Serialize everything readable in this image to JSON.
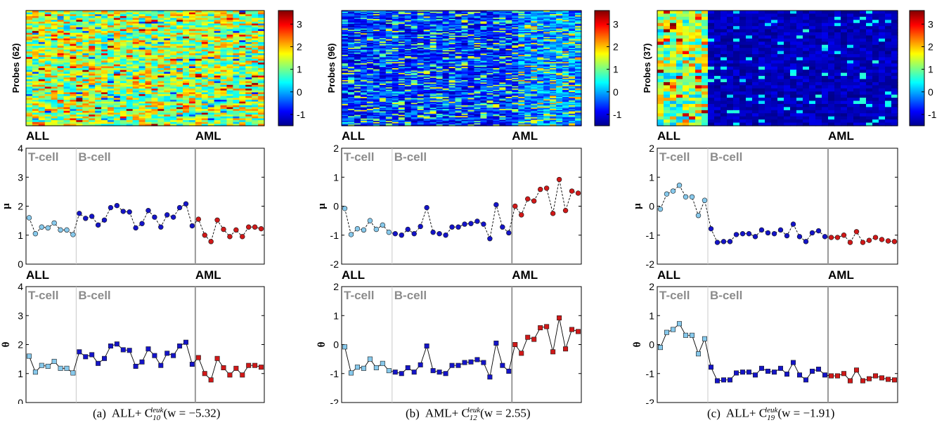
{
  "colorbar_ticks": [
    "3",
    "2",
    "1",
    "0",
    "-1"
  ],
  "group_labels": {
    "all": "ALL",
    "aml": "AML",
    "tcell": "T-cell",
    "bcell": "B-cell"
  },
  "colors": {
    "tcell": "#87c9ec",
    "bcell": "#1414c8",
    "aml": "#d01818",
    "divider": "#999999",
    "label_gray": "#8c8c8c"
  },
  "captions": [
    {
      "label": "(a)",
      "pre": "ALL+ C",
      "sub": "10",
      "sup": "leuk",
      "post": "(w = −5.32)"
    },
    {
      "label": "(b)",
      "pre": "AML+ C",
      "sub": "12",
      "sup": "leuk",
      "post": "(w = 2.55)"
    },
    {
      "label": "(c)",
      "pre": "ALL+ C",
      "sub": "19",
      "sup": "leuk",
      "post": "(w = −1.91)"
    }
  ],
  "chart_data": [
    {
      "type": "heatmap",
      "panel": "a",
      "ylabel": "Probes (62)",
      "rows": 62,
      "n_samples": 38,
      "n_tcell": 8,
      "n_bcell": 19,
      "n_aml": 11,
      "clim": [
        -1.5,
        3.6
      ],
      "colorbar_ticks": [
        3,
        2,
        1,
        0,
        -1
      ]
    },
    {
      "type": "line",
      "panel": "a",
      "ylabel": "μ",
      "ylim": [
        0,
        4
      ],
      "yticks": [
        0,
        1,
        2,
        3,
        4
      ],
      "marker": "circle",
      "linestyle": "dashed",
      "series": [
        {
          "group": "tcell",
          "values": [
            1.6,
            1.05,
            1.28,
            1.25,
            1.42,
            1.18,
            1.18,
            1.02
          ]
        },
        {
          "group": "bcell",
          "values": [
            1.75,
            1.58,
            1.65,
            1.35,
            1.52,
            1.95,
            2.02,
            1.82,
            1.8,
            1.25,
            1.4,
            1.85,
            1.62,
            1.28,
            1.7,
            1.62,
            1.95,
            2.08,
            1.32
          ]
        },
        {
          "group": "aml",
          "values": [
            1.55,
            1.0,
            0.78,
            1.52,
            1.2,
            0.95,
            1.18,
            0.95,
            1.28,
            1.28,
            1.22
          ]
        }
      ]
    },
    {
      "type": "line",
      "panel": "a",
      "ylabel": "θ",
      "ylim": [
        0,
        4
      ],
      "yticks": [
        0,
        1,
        2,
        3,
        4
      ],
      "marker": "square",
      "linestyle": "solid",
      "series": [
        {
          "group": "tcell",
          "values": [
            1.6,
            1.05,
            1.28,
            1.25,
            1.42,
            1.18,
            1.18,
            1.02
          ]
        },
        {
          "group": "bcell",
          "values": [
            1.75,
            1.58,
            1.65,
            1.35,
            1.52,
            1.95,
            2.02,
            1.82,
            1.8,
            1.25,
            1.4,
            1.85,
            1.62,
            1.28,
            1.7,
            1.62,
            1.95,
            2.08,
            1.32
          ]
        },
        {
          "group": "aml",
          "values": [
            1.55,
            1.0,
            0.78,
            1.52,
            1.2,
            0.95,
            1.18,
            0.95,
            1.28,
            1.28,
            1.22
          ]
        }
      ]
    },
    {
      "type": "heatmap",
      "panel": "b",
      "ylabel": "Probes (96)",
      "rows": 96,
      "n_samples": 38,
      "n_tcell": 8,
      "n_bcell": 19,
      "n_aml": 11,
      "clim": [
        -1.5,
        3.6
      ],
      "colorbar_ticks": [
        3,
        2,
        1,
        0,
        -1
      ]
    },
    {
      "type": "line",
      "panel": "b",
      "ylabel": "μ",
      "ylim": [
        -2,
        2
      ],
      "yticks": [
        -2,
        -1,
        0,
        1,
        2
      ],
      "marker": "circle",
      "linestyle": "dashed",
      "series": [
        {
          "group": "tcell",
          "values": [
            -0.08,
            -0.98,
            -0.78,
            -0.82,
            -0.5,
            -0.8,
            -0.65,
            -0.9
          ]
        },
        {
          "group": "bcell",
          "values": [
            -0.95,
            -1.0,
            -0.8,
            -0.95,
            -0.7,
            -0.05,
            -0.9,
            -0.95,
            -1.0,
            -0.72,
            -0.72,
            -0.62,
            -0.6,
            -0.52,
            -0.62,
            -1.12,
            0.05,
            -0.72,
            -0.92
          ]
        },
        {
          "group": "aml",
          "values": [
            0.0,
            -0.3,
            0.25,
            0.18,
            0.58,
            0.62,
            -0.25,
            0.92,
            -0.15,
            0.52,
            0.45
          ]
        }
      ]
    },
    {
      "type": "line",
      "panel": "b",
      "ylabel": "θ",
      "ylim": [
        -2,
        2
      ],
      "yticks": [
        -2,
        -1,
        0,
        1,
        2
      ],
      "marker": "square",
      "linestyle": "solid",
      "series": [
        {
          "group": "tcell",
          "values": [
            -0.08,
            -0.98,
            -0.78,
            -0.82,
            -0.5,
            -0.8,
            -0.65,
            -0.9
          ]
        },
        {
          "group": "bcell",
          "values": [
            -0.95,
            -1.0,
            -0.8,
            -0.95,
            -0.7,
            -0.05,
            -0.9,
            -0.95,
            -1.0,
            -0.72,
            -0.72,
            -0.62,
            -0.6,
            -0.52,
            -0.62,
            -1.12,
            0.05,
            -0.72,
            -0.92
          ]
        },
        {
          "group": "aml",
          "values": [
            0.0,
            -0.3,
            0.25,
            0.18,
            0.58,
            0.62,
            -0.25,
            0.92,
            -0.15,
            0.52,
            0.45
          ]
        }
      ]
    },
    {
      "type": "heatmap",
      "panel": "c",
      "ylabel": "Probes (37)",
      "rows": 37,
      "n_samples": 38,
      "n_tcell": 8,
      "n_bcell": 19,
      "n_aml": 11,
      "clim": [
        -1.5,
        3.6
      ],
      "colorbar_ticks": [
        3,
        2,
        1,
        0,
        -1
      ]
    },
    {
      "type": "line",
      "panel": "c",
      "ylabel": "μ",
      "ylim": [
        -2,
        2
      ],
      "yticks": [
        -2,
        -1,
        0,
        1,
        2
      ],
      "marker": "circle",
      "linestyle": "dashed",
      "series": [
        {
          "group": "tcell",
          "values": [
            -0.1,
            0.42,
            0.52,
            0.72,
            0.32,
            0.32,
            -0.32,
            0.2
          ]
        },
        {
          "group": "bcell",
          "values": [
            -0.78,
            -1.25,
            -1.22,
            -1.22,
            -0.98,
            -0.95,
            -0.95,
            -1.05,
            -0.82,
            -0.92,
            -0.95,
            -0.82,
            -1.02,
            -0.62,
            -1.05,
            -1.22,
            -0.92,
            -0.85,
            -1.05
          ]
        },
        {
          "group": "aml",
          "values": [
            -1.08,
            -1.08,
            -1.0,
            -1.25,
            -0.88,
            -1.25,
            -1.18,
            -1.08,
            -1.15,
            -1.2,
            -1.22
          ]
        }
      ]
    },
    {
      "type": "line",
      "panel": "c",
      "ylabel": "θ",
      "ylim": [
        -2,
        2
      ],
      "yticks": [
        -2,
        -1,
        0,
        1,
        2
      ],
      "marker": "square",
      "linestyle": "solid",
      "series": [
        {
          "group": "tcell",
          "values": [
            -0.1,
            0.42,
            0.52,
            0.72,
            0.32,
            0.32,
            -0.32,
            0.2
          ]
        },
        {
          "group": "bcell",
          "values": [
            -0.78,
            -1.25,
            -1.22,
            -1.22,
            -0.98,
            -0.95,
            -0.95,
            -1.05,
            -0.82,
            -0.92,
            -0.95,
            -0.82,
            -1.02,
            -0.62,
            -1.05,
            -1.22,
            -0.92,
            -0.85,
            -1.05
          ]
        },
        {
          "group": "aml",
          "values": [
            -1.08,
            -1.08,
            -1.0,
            -1.25,
            -0.88,
            -1.25,
            -1.18,
            -1.08,
            -1.15,
            -1.2,
            -1.22
          ]
        }
      ]
    }
  ]
}
